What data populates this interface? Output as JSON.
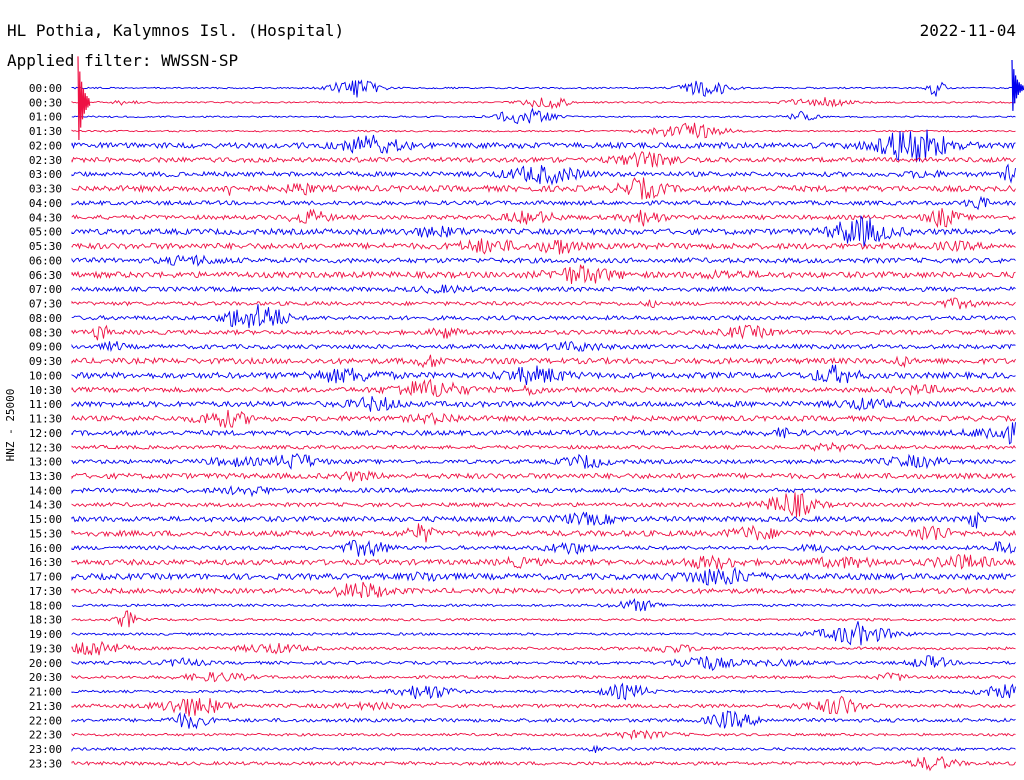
{
  "header": {
    "station": "HL Pothia, Kalymnos Isl. (Hospital)",
    "date": "2022-11-04",
    "filter_label": "Applied filter: WWSSN-SP"
  },
  "chart_data": {
    "type": "line",
    "title": "HL Pothia, Kalymnos Isl. (Hospital)",
    "ylabel": "HNZ - 25000",
    "xlabel": "",
    "grid": false,
    "colors": {
      "trace_a": "#0000ee",
      "trace_b": "#ee1144"
    },
    "rows": [
      "00:00",
      "00:30",
      "01:00",
      "01:30",
      "02:00",
      "02:30",
      "03:00",
      "03:30",
      "04:00",
      "04:30",
      "05:00",
      "05:30",
      "06:00",
      "06:30",
      "07:00",
      "07:30",
      "08:00",
      "08:30",
      "09:00",
      "09:30",
      "10:00",
      "10:30",
      "11:00",
      "11:30",
      "12:00",
      "12:30",
      "13:00",
      "13:30",
      "14:00",
      "14:30",
      "15:00",
      "15:30",
      "16:00",
      "16:30",
      "17:00",
      "17:30",
      "18:00",
      "18:30",
      "19:00",
      "19:30",
      "20:00",
      "20:30",
      "21:00",
      "21:30",
      "22:00",
      "22:30",
      "23:00",
      "23:30"
    ]
  }
}
